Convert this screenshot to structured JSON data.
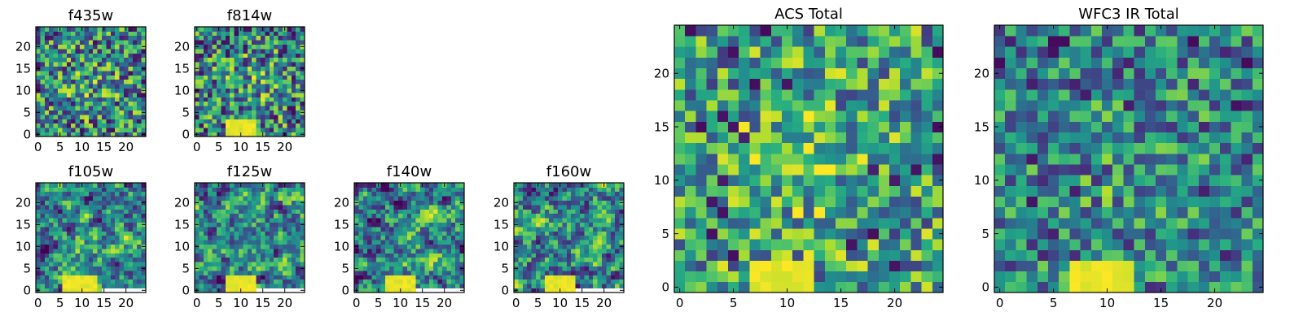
{
  "chart_data": [
    {
      "type": "heatmap",
      "title": "f435w",
      "grid_size": 25,
      "xticks": [
        0,
        5,
        10,
        15,
        20
      ],
      "yticks": [
        0,
        5,
        10,
        15,
        20
      ],
      "xlim": [
        -0.5,
        24.5
      ],
      "ylim": [
        -0.5,
        24.5
      ],
      "colormap": "viridis",
      "seed": 435,
      "bright_region": null,
      "blank_region": null,
      "noise_level": "high"
    },
    {
      "type": "heatmap",
      "title": "f814w",
      "grid_size": 25,
      "xticks": [
        0,
        5,
        10,
        15,
        20
      ],
      "yticks": [
        0,
        5,
        10,
        15,
        20
      ],
      "xlim": [
        -0.5,
        24.5
      ],
      "ylim": [
        -0.5,
        24.5
      ],
      "colormap": "viridis",
      "seed": 814,
      "bright_region": {
        "x": [
          7,
          13
        ],
        "y": [
          0,
          3
        ]
      },
      "blank_region": null,
      "noise_level": "high"
    },
    {
      "type": "heatmap",
      "title": "f105w",
      "grid_size": 25,
      "xticks": [
        0,
        5,
        10,
        15,
        20
      ],
      "yticks": [
        0,
        5,
        10,
        15,
        20
      ],
      "xlim": [
        -0.5,
        24.5
      ],
      "ylim": [
        -0.5,
        24.5
      ],
      "colormap": "viridis",
      "seed": 105,
      "bright_region": {
        "x": [
          6,
          13
        ],
        "y": [
          0,
          3
        ]
      },
      "blank_region": {
        "x": [
          15,
          24
        ],
        "y": [
          0,
          0
        ]
      },
      "noise_level": "smooth"
    },
    {
      "type": "heatmap",
      "title": "f125w",
      "grid_size": 25,
      "xticks": [
        0,
        5,
        10,
        15,
        20
      ],
      "yticks": [
        0,
        5,
        10,
        15,
        20
      ],
      "xlim": [
        -0.5,
        24.5
      ],
      "ylim": [
        -0.5,
        24.5
      ],
      "colormap": "viridis",
      "seed": 125,
      "bright_region": {
        "x": [
          7,
          13
        ],
        "y": [
          0,
          3
        ]
      },
      "blank_region": {
        "x": [
          14,
          24
        ],
        "y": [
          0,
          0
        ]
      },
      "noise_level": "smooth"
    },
    {
      "type": "heatmap",
      "title": "f140w",
      "grid_size": 25,
      "xticks": [
        0,
        5,
        10,
        15,
        20
      ],
      "yticks": [
        0,
        5,
        10,
        15,
        20
      ],
      "xlim": [
        -0.5,
        24.5
      ],
      "ylim": [
        -0.5,
        24.5
      ],
      "colormap": "viridis",
      "seed": 140,
      "bright_region": {
        "x": [
          7,
          13
        ],
        "y": [
          0,
          3
        ]
      },
      "blank_region": {
        "x": [
          14,
          24
        ],
        "y": [
          0,
          0
        ]
      },
      "noise_level": "smooth"
    },
    {
      "type": "heatmap",
      "title": "f160w",
      "grid_size": 25,
      "xticks": [
        0,
        5,
        10,
        15,
        20
      ],
      "yticks": [
        0,
        5,
        10,
        15,
        20
      ],
      "xlim": [
        -0.5,
        24.5
      ],
      "ylim": [
        -0.5,
        24.5
      ],
      "colormap": "viridis",
      "seed": 160,
      "bright_region": {
        "x": [
          7,
          13
        ],
        "y": [
          0,
          3
        ]
      },
      "blank_region": {
        "x": [
          14,
          24
        ],
        "y": [
          0,
          0
        ]
      },
      "noise_level": "smooth"
    },
    {
      "type": "heatmap",
      "title": "ACS Total",
      "grid_size": 25,
      "xticks": [
        0,
        5,
        10,
        15,
        20
      ],
      "yticks": [
        0,
        5,
        10,
        15,
        20
      ],
      "xlim": [
        -0.5,
        24.5
      ],
      "ylim": [
        -0.5,
        24.5
      ],
      "colormap": "viridis",
      "seed": 777,
      "bright_region": {
        "x": [
          7,
          12
        ],
        "y": [
          0,
          2
        ]
      },
      "blank_region": null,
      "noise_level": "medium"
    },
    {
      "type": "heatmap",
      "title": "WFC3 IR Total",
      "grid_size": 25,
      "xticks": [
        0,
        5,
        10,
        15,
        20
      ],
      "yticks": [
        0,
        5,
        10,
        15,
        20
      ],
      "xlim": [
        -0.5,
        24.5
      ],
      "ylim": [
        -0.5,
        24.5
      ],
      "colormap": "viridis",
      "seed": 999,
      "bright_region": {
        "x": [
          7,
          12
        ],
        "y": [
          0,
          2
        ]
      },
      "blank_region": null,
      "noise_level": "dim"
    }
  ]
}
